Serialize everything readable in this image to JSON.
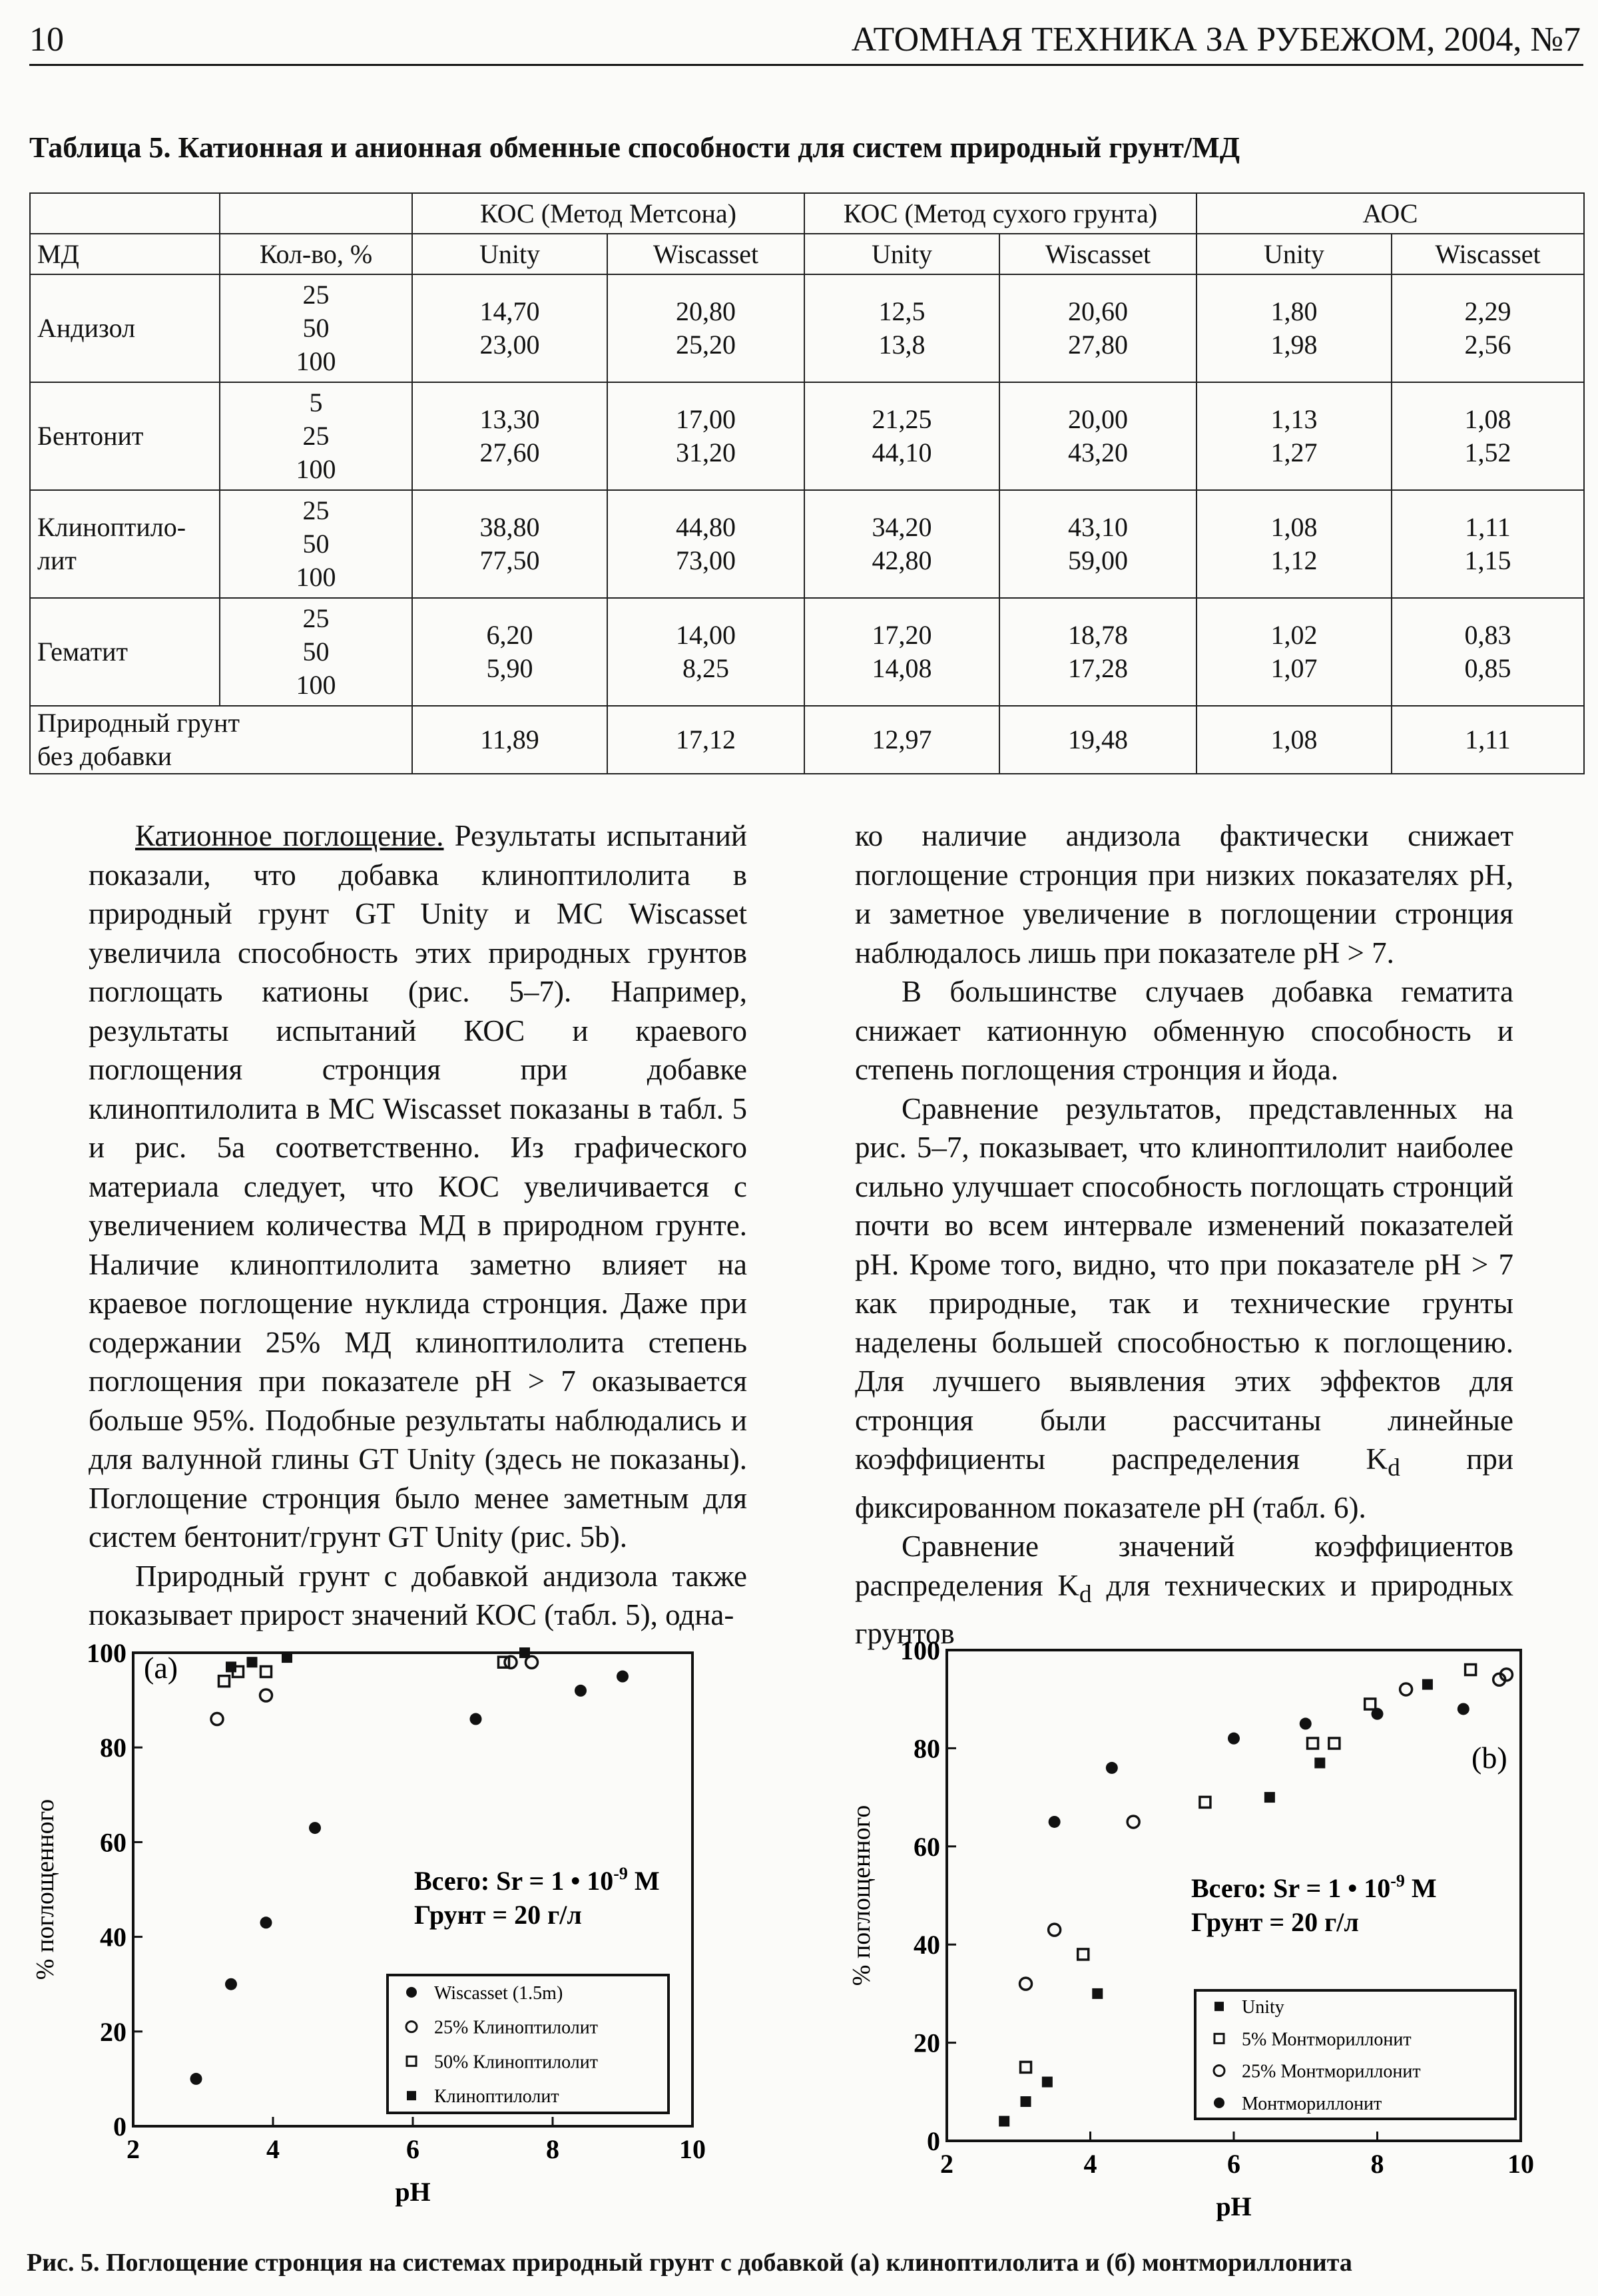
{
  "header": {
    "page": "10",
    "journal": "АТОМНАЯ ТЕХНИКА ЗА РУБЕЖОМ, 2004, №7"
  },
  "table": {
    "caption": "Таблица 5. Катионная и анионная обменные способности для систем природный грунт/МД",
    "groups": [
      "КОС (Метод Метсона)",
      "КОС (Метод сухого грунта)",
      "АОС"
    ],
    "columns": [
      "МД",
      "Кол-во, %",
      "Unity",
      "Wiscasset",
      "Unity",
      "Wiscasset",
      "Unity",
      "Wiscasset"
    ],
    "rows": [
      {
        "name": [
          "Андизол"
        ],
        "amounts": [
          "25",
          "50",
          "100"
        ],
        "cells": [
          [
            "14,70",
            "23,00"
          ],
          [
            "20,80",
            "25,20"
          ],
          [
            "12,5",
            "13,8"
          ],
          [
            "20,60",
            "27,80"
          ],
          [
            "1,80",
            "1,98"
          ],
          [
            "2,29",
            "2,56"
          ]
        ]
      },
      {
        "name": [
          "Бентонит"
        ],
        "amounts": [
          "5",
          "25",
          "100"
        ],
        "cells": [
          [
            "13,30",
            "27,60"
          ],
          [
            "17,00",
            "31,20"
          ],
          [
            "21,25",
            "44,10"
          ],
          [
            "20,00",
            "43,20"
          ],
          [
            "1,13",
            "1,27"
          ],
          [
            "1,08",
            "1,52"
          ]
        ]
      },
      {
        "name": [
          "Клиноптило-",
          "лит"
        ],
        "amounts": [
          "25",
          "50",
          "100"
        ],
        "cells": [
          [
            "38,80",
            "77,50"
          ],
          [
            "44,80",
            "73,00"
          ],
          [
            "34,20",
            "42,80"
          ],
          [
            "43,10",
            "59,00"
          ],
          [
            "1,08",
            "1,12"
          ],
          [
            "1,11",
            "1,15"
          ]
        ]
      },
      {
        "name": [
          "Гематит"
        ],
        "amounts": [
          "25",
          "50",
          "100"
        ],
        "cells": [
          [
            "6,20",
            "5,90"
          ],
          [
            "14,00",
            "8,25"
          ],
          [
            "17,20",
            "14,08"
          ],
          [
            "18,78",
            "17,28"
          ],
          [
            "1,02",
            "1,07"
          ],
          [
            "0,83",
            "0,85"
          ]
        ]
      },
      {
        "name": [
          "Природный грунт",
          "без добавки"
        ],
        "amounts": [],
        "cells": [
          [
            "11,89"
          ],
          [
            "17,12"
          ],
          [
            "12,97"
          ],
          [
            "19,48"
          ],
          [
            "1,08"
          ],
          [
            "1,11"
          ]
        ]
      }
    ]
  },
  "text": {
    "left": [
      {
        "lead": "Катионное поглощение.",
        "text": " Результаты испытаний показали, что добавка клиноптилолита в природный грунт GT Unity и MC Wiscasset увеличила способность этих природных грунтов поглощать катионы (рис. 5–7). Например, результаты испытаний КОС и краевого поглощения стронция при добавке клиноптилолита в MC Wiscasset показаны в табл. 5 и рис. 5а соответственно. Из графического материала следует, что КОС увеличивается с увеличением количества МД в природном грунте. Наличие клиноптилолита заметно влияет на краевое поглощение нуклида стронция. Даже при содержании 25% МД клиноптилолита степень поглощения при показателе pH > 7 оказывается больше 95%. Подобные результаты наблюдались и для валунной глины GT Unity (здесь не показаны). Поглощение стронция было менее заметным для систем бентонит/грунт GT Unity (рис. 5b)."
      },
      {
        "text": "Природный грунт с добавкой андизола также показывает прирост значений КОС (табл. 5), одна-"
      }
    ],
    "right": [
      {
        "text": "ко наличие андизола фактически снижает поглощение стронция при низких показателях pH, и заметное увеличение в поглощении стронция наблюдалось лишь при показателе pH > 7."
      },
      {
        "text": "В большинстве случаев добавка гематита снижает катионную обменную способность и степень поглощения стронция и йода."
      },
      {
        "text": "Сравнение результатов, представленных на рис. 5–7, показывает, что клиноптилолит наиболее сильно улучшает способность поглощать стронций почти во всем интервале изменений показателей pH. Кроме того, видно, что при показателе pH > 7 как природные, так и технические грунты наделены большей способностью к поглощению. Для лучшего выявления этих эффектов для стронция были рассчитаны линейные коэффициенты распределения K",
        "sub": "d",
        "tail": " при фиксированном показателе pH (табл. 6)."
      },
      {
        "text": "Сравнение значений коэффициентов распределения K",
        "sub": "d",
        "tail": " для технических и природных грунтов"
      }
    ]
  },
  "chart_data": [
    {
      "type": "scatter",
      "panel": "(a)",
      "x_label": "pH",
      "y_label": "% поглощенного",
      "xlim": [
        2,
        10
      ],
      "xticks": [
        2,
        4,
        6,
        8,
        10
      ],
      "ylim": [
        0,
        100
      ],
      "yticks": [
        0,
        20,
        40,
        60,
        80,
        100
      ],
      "annotation": {
        "sr": "Всего: Sr = 1 • 10",
        "exponent": "-9",
        "unit": " M",
        "soil": "Грунт = 20 г/л"
      },
      "series": [
        {
          "name": "Wiscasset (1.5m)",
          "marker": "filled-circle",
          "color": "#111",
          "x": [
            2.9,
            3.4,
            3.9,
            4.6,
            6.9,
            8.4,
            9.0
          ],
          "values": [
            10,
            30,
            43,
            63,
            86,
            92,
            95
          ]
        },
        {
          "name": "25% Клиноптилолит",
          "marker": "open-circle",
          "color": "#111",
          "x": [
            3.2,
            3.9,
            7.4,
            7.7
          ],
          "values": [
            86,
            91,
            98,
            98
          ]
        },
        {
          "name": "50% Клиноптилолит",
          "marker": "open-square",
          "color": "#111",
          "x": [
            3.3,
            3.5,
            3.9,
            7.3
          ],
          "values": [
            94,
            96,
            96,
            98
          ]
        },
        {
          "name": "Клиноптилолит",
          "marker": "filled-square",
          "color": "#111",
          "x": [
            3.4,
            3.7,
            4.2,
            7.6
          ],
          "values": [
            97,
            98,
            99,
            100
          ]
        }
      ]
    },
    {
      "type": "scatter",
      "panel": "(b)",
      "x_label": "pH",
      "y_label": "% поглощенного",
      "xlim": [
        2,
        10
      ],
      "xticks": [
        2,
        4,
        6,
        8,
        10
      ],
      "ylim": [
        0,
        100
      ],
      "yticks": [
        0,
        20,
        40,
        60,
        80,
        100
      ],
      "annotation": {
        "sr": "Всего: Sr = 1 • 10",
        "exponent": "-9",
        "unit": " M",
        "soil": "Грунт = 20 г/л"
      },
      "series": [
        {
          "name": "Unity",
          "marker": "filled-square",
          "color": "#111",
          "x": [
            2.8,
            3.1,
            3.4,
            4.1,
            6.5,
            7.2,
            8.7
          ],
          "values": [
            4,
            8,
            12,
            30,
            70,
            77,
            93
          ]
        },
        {
          "name": "5% Монтмориллонит",
          "marker": "open-square",
          "color": "#111",
          "x": [
            3.1,
            3.9,
            5.6,
            7.1,
            7.4,
            7.9,
            9.3
          ],
          "values": [
            15,
            38,
            69,
            81,
            81,
            89,
            96
          ]
        },
        {
          "name": "25% Монтмориллонит",
          "marker": "open-circle",
          "color": "#111",
          "x": [
            3.1,
            3.5,
            4.6,
            8.4,
            9.7,
            9.8
          ],
          "values": [
            32,
            43,
            65,
            92,
            94,
            95
          ]
        },
        {
          "name": "Монтмориллонит",
          "marker": "filled-circle",
          "color": "#111",
          "x": [
            3.5,
            4.3,
            6.0,
            7.0,
            8.0,
            9.2
          ],
          "values": [
            65,
            76,
            82,
            85,
            87,
            88
          ]
        }
      ]
    }
  ],
  "figure_caption": "Рис. 5.  Поглощение стронция на системах природный грунт с добавкой (а) клиноптилолита и (б) монтмориллонита"
}
